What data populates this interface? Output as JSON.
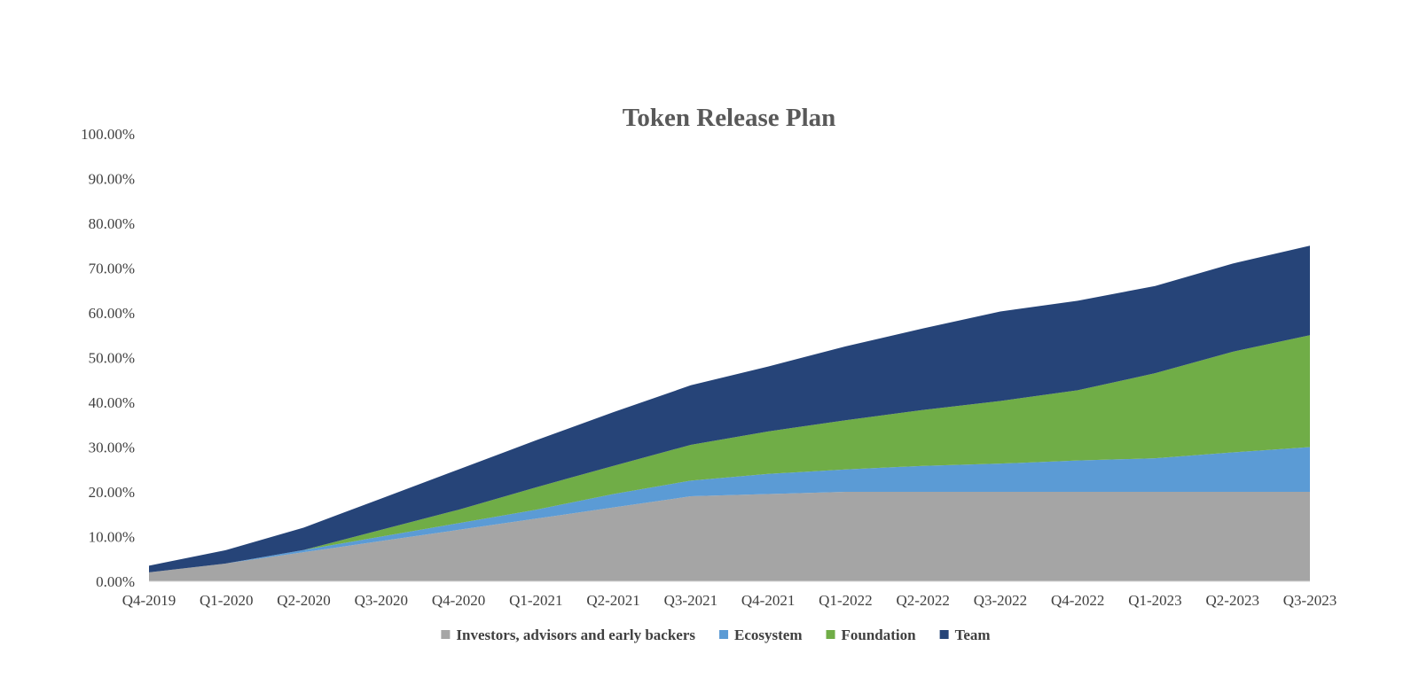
{
  "chart_data": {
    "type": "area",
    "stacked": true,
    "title": "Token Release Plan",
    "xlabel": "",
    "ylabel": "",
    "ylim": [
      0,
      100
    ],
    "y_ticks": [
      "0.00%",
      "10.00%",
      "20.00%",
      "30.00%",
      "40.00%",
      "50.00%",
      "60.00%",
      "70.00%",
      "80.00%",
      "90.00%",
      "100.00%"
    ],
    "grid": false,
    "legend_position": "bottom",
    "categories": [
      "Q4-2019",
      "Q1-2020",
      "Q2-2020",
      "Q3-2020",
      "Q4-2020",
      "Q1-2021",
      "Q2-2021",
      "Q3-2021",
      "Q4-2021",
      "Q1-2022",
      "Q2-2022",
      "Q3-2022",
      "Q4-2022",
      "Q1-2023",
      "Q2-2023",
      "Q3-2023"
    ],
    "series": [
      {
        "name": "Investors, advisors and early backers",
        "color": "#A5A5A5",
        "values": [
          2.0,
          4.0,
          6.5,
          9.0,
          11.5,
          14.0,
          16.5,
          19.0,
          19.5,
          20.0,
          20.0,
          20.0,
          20.0,
          20.0,
          20.0,
          20.0
        ]
      },
      {
        "name": "Ecosystem",
        "color": "#5B9BD5",
        "values": [
          0.0,
          0.0,
          0.5,
          1.0,
          1.5,
          2.0,
          3.0,
          3.5,
          4.5,
          5.0,
          5.8,
          6.3,
          7.0,
          7.5,
          8.8,
          10.0
        ]
      },
      {
        "name": "Foundation",
        "color": "#70AD47",
        "values": [
          0.0,
          0.0,
          0.0,
          1.5,
          3.0,
          5.0,
          6.3,
          8.0,
          9.5,
          11.0,
          12.5,
          14.0,
          15.7,
          19.0,
          22.5,
          25.0
        ]
      },
      {
        "name": "Team",
        "color": "#264478",
        "values": [
          1.5,
          3.0,
          5.0,
          7.0,
          9.0,
          10.5,
          12.0,
          13.3,
          14.5,
          16.5,
          18.2,
          20.0,
          20.0,
          19.5,
          19.7,
          20.0
        ]
      }
    ]
  }
}
